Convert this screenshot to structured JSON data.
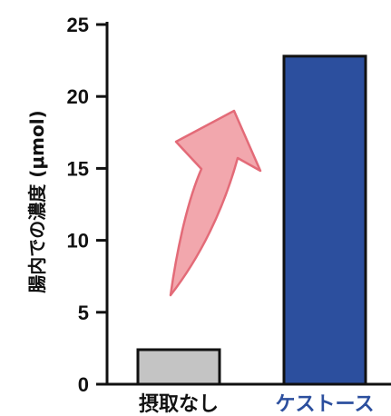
{
  "chart_data": {
    "type": "bar",
    "title": "",
    "xlabel": "",
    "ylabel": "腸内での濃度 (μmol)",
    "ylim": [
      0,
      25
    ],
    "yticks": [
      0,
      5,
      10,
      15,
      20,
      25
    ],
    "grid": false,
    "categories": [
      "摂取なし",
      "ケストース"
    ],
    "values": [
      2.4,
      22.8
    ],
    "colors": {
      "bars": [
        "#c4c4c4",
        "#2c4f9e"
      ],
      "category_labels": [
        "#111111",
        "#2c4f9e"
      ],
      "arrow_fill": "#f2a7ad",
      "arrow_stroke": "#e36b78"
    },
    "annotation_icon": "upward-curved-arrow-icon"
  }
}
